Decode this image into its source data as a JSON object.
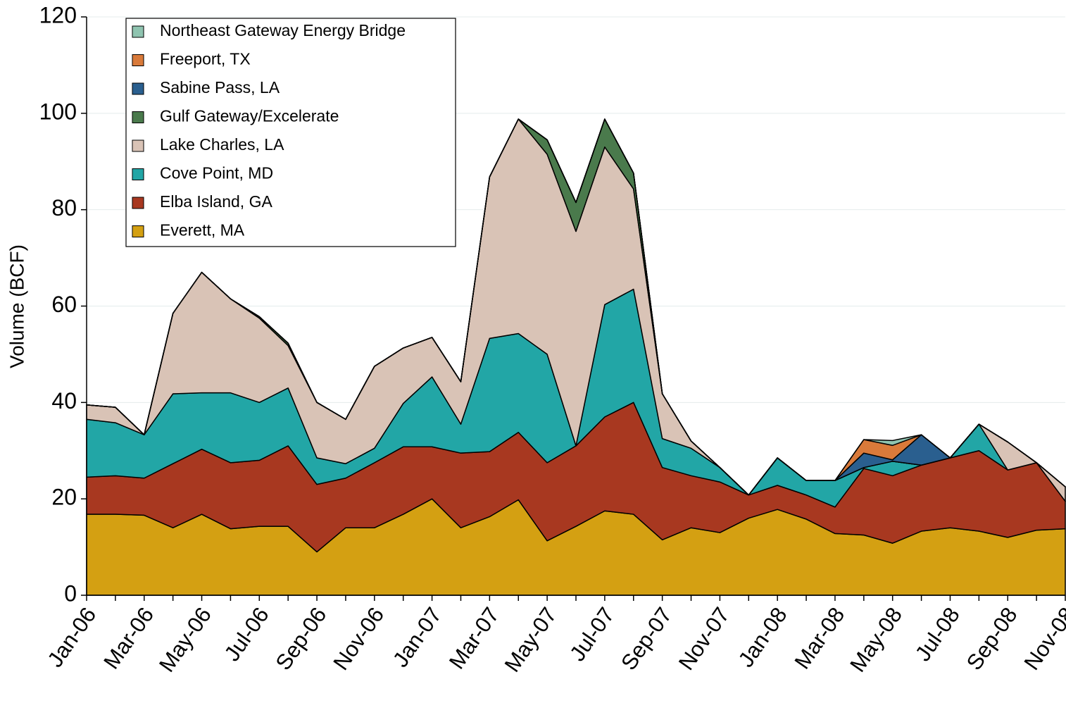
{
  "chart_data": {
    "type": "stacked_area",
    "y_label": "Volume (BCF)",
    "categories": [
      "Jan-06",
      null,
      "Mar-06",
      null,
      "May-06",
      null,
      "Jul-06",
      null,
      "Sep-06",
      null,
      "Nov-06",
      null,
      "Jan-07",
      null,
      "Mar-07",
      null,
      "May-07",
      null,
      "Jul-07",
      null,
      "Sep-07",
      null,
      "Nov-07",
      null,
      "Jan-08",
      null,
      "Mar-08",
      null,
      "May-08",
      null,
      "Jul-08",
      null,
      "Sep-08",
      null,
      "Nov-08"
    ],
    "ylim": [
      0,
      120
    ],
    "yticks": [
      0,
      20,
      40,
      60,
      80,
      100,
      120
    ],
    "grid": true,
    "legend": "upper left",
    "series": [
      {
        "name": "Everett, MA",
        "color": "#d4a012",
        "values": [
          16.8,
          16.8,
          16.6,
          14,
          16.8,
          13.8,
          14.3,
          14.3,
          9,
          14,
          14,
          16.8,
          20,
          14,
          16.3,
          19.8,
          11.3,
          14.3,
          17.5,
          16.8,
          11.5,
          14,
          13,
          16,
          17.8,
          15.8,
          12.8,
          12.5,
          10.8,
          13.3,
          14,
          13.3,
          12,
          13.5,
          13.8
        ]
      },
      {
        "name": "Elba Island, GA",
        "color": "#a83820",
        "values": [
          7.7,
          8,
          7.7,
          13.3,
          13.5,
          13.7,
          13.7,
          16.7,
          14,
          10.3,
          13.5,
          14,
          10.8,
          15.5,
          13.5,
          14,
          16.2,
          16.7,
          19.5,
          23.2,
          15,
          10.8,
          10.5,
          4.8,
          5,
          5,
          5.5,
          13.8,
          14,
          13.7,
          14.5,
          16.7,
          14,
          14,
          5.7
        ]
      },
      {
        "name": "Cove Point, MD",
        "color": "#22a6a6",
        "values": [
          12,
          11,
          9,
          14.5,
          11.7,
          14.5,
          12,
          12,
          5.5,
          3,
          3,
          9,
          14.5,
          6,
          23.5,
          20.5,
          22.5,
          0,
          23.3,
          23.5,
          6,
          5.7,
          3,
          0,
          5.7,
          3,
          5.5,
          0.2,
          3,
          0,
          0,
          5.5,
          0,
          0,
          0
        ]
      },
      {
        "name": "Lake Charles, LA",
        "color": "#d9c3b6",
        "values": [
          3,
          3.2,
          0,
          16.7,
          25,
          19.5,
          17.5,
          8.8,
          11.5,
          9.2,
          17,
          11.5,
          8.2,
          8.8,
          33.5,
          44.5,
          41.5,
          44.5,
          32.7,
          20.8,
          9.3,
          1.5,
          0,
          0,
          0,
          0,
          0,
          0,
          0,
          0,
          0,
          0,
          5.8,
          0,
          3
        ]
      },
      {
        "name": "Gulf Gateway/Excelerate",
        "color": "#4a7a4c",
        "values": [
          0,
          0,
          0,
          0,
          0,
          0,
          0.3,
          0.5,
          0,
          0,
          0,
          0,
          0,
          0,
          0,
          0,
          3,
          6,
          5.8,
          3.3,
          0,
          0,
          0,
          0,
          0,
          0,
          0,
          0,
          0,
          0,
          0,
          0,
          0,
          0,
          0
        ]
      },
      {
        "name": "Sabine Pass, LA",
        "color": "#2a5f8f",
        "values": [
          0,
          0,
          0,
          0,
          0,
          0,
          0,
          0,
          0,
          0,
          0,
          0,
          0,
          0,
          0,
          0,
          0,
          0,
          0,
          0,
          0,
          0,
          0,
          0,
          0,
          0,
          0,
          3,
          0.3,
          6.3,
          0,
          0,
          0,
          0,
          0
        ]
      },
      {
        "name": "Freeport, TX",
        "color": "#d97a3a",
        "values": [
          0,
          0,
          0,
          0,
          0,
          0,
          0,
          0,
          0,
          0,
          0,
          0,
          0,
          0,
          0,
          0,
          0,
          0,
          0,
          0,
          0,
          0,
          0,
          0,
          0,
          0,
          0,
          2.8,
          3,
          0,
          0,
          0,
          0,
          0,
          0
        ]
      },
      {
        "name": "Northeast Gateway Energy Bridge",
        "color": "#8fc4b0",
        "values": [
          0,
          0,
          0,
          0,
          0,
          0,
          0,
          0,
          0,
          0,
          0,
          0,
          0,
          0,
          0,
          0,
          0,
          0,
          0,
          0,
          0,
          0,
          0,
          0,
          0,
          0,
          0,
          0,
          1,
          0,
          0,
          0,
          0,
          0,
          0
        ]
      }
    ]
  }
}
